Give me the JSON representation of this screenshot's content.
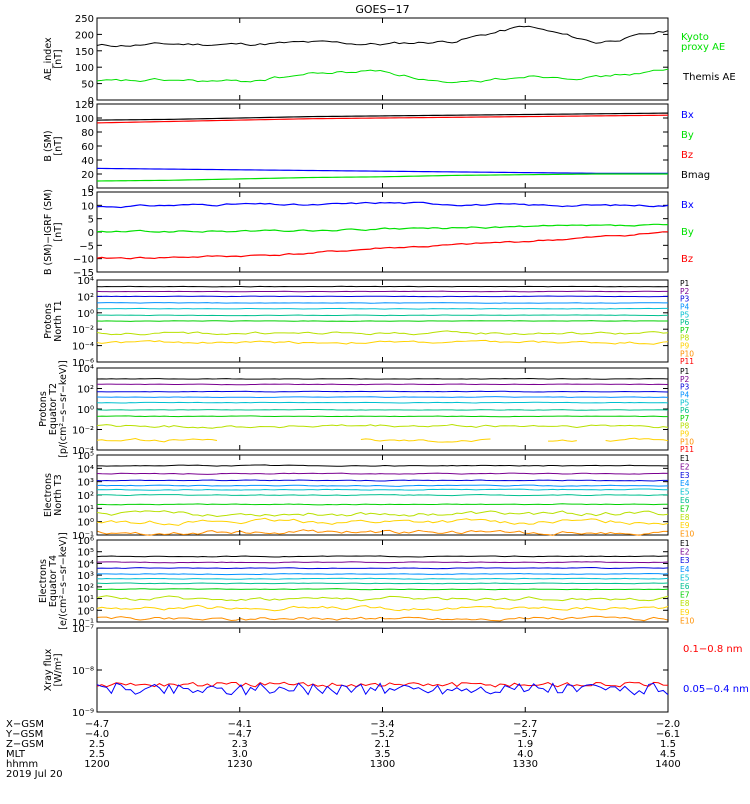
{
  "title": "GOES−17",
  "colors": {
    "black": "#000000",
    "red": "#ff0000",
    "green": "#00e000",
    "blue": "#0000ff",
    "p1": "#000000",
    "p2": "#7a0090",
    "p3": "#0000dd",
    "p4": "#0090ff",
    "p5": "#00c0d0",
    "p6": "#00c090",
    "p7": "#00d000",
    "p8": "#b8e000",
    "p9": "#ffd200",
    "p10": "#ff9000",
    "p11": "#ff0000",
    "p12": "#b00000"
  },
  "chart_data": [
    {
      "type": "line",
      "panel": "ae_index",
      "ylabel": "AE_index [nT]",
      "ylim": [
        0,
        250
      ],
      "yticks": [
        "0",
        "50",
        "100",
        "150",
        "200",
        "250"
      ],
      "x": [
        "12:00",
        "12:15",
        "12:30",
        "12:45",
        "13:00",
        "13:15",
        "13:30",
        "13:45",
        "14:00"
      ],
      "series": [
        {
          "name": "Kyoto proxy AE",
          "color": "#00e000",
          "values": [
            165,
            170,
            170,
            175,
            170,
            180,
            225,
            175,
            210
          ]
        },
        {
          "name": "Themis AE",
          "color": "#000000",
          "values": [
            55,
            60,
            55,
            80,
            90,
            45,
            75,
            70,
            90
          ]
        }
      ],
      "legend_color_map": {
        "Kyoto proxy AE": "#00e000",
        "Themis AE": "#000000"
      }
    },
    {
      "type": "line",
      "panel": "b_sm",
      "ylabel": "B (SM) [nT]",
      "ylim": [
        0,
        120
      ],
      "yticks": [
        "0",
        "20",
        "40",
        "60",
        "80",
        "100",
        "120"
      ],
      "series": [
        {
          "name": "Bx",
          "color": "#0000ff",
          "values": [
            28,
            27,
            26,
            25,
            24,
            23,
            22,
            21,
            21
          ]
        },
        {
          "name": "By",
          "color": "#00e000",
          "values": [
            10,
            11,
            13,
            15,
            16,
            18,
            19,
            20,
            20
          ]
        },
        {
          "name": "Bz",
          "color": "#ff0000",
          "values": [
            93,
            95,
            97,
            99,
            100,
            101,
            102,
            103,
            104
          ]
        },
        {
          "name": "Bmag",
          "color": "#000000",
          "values": [
            97,
            98,
            100,
            102,
            103,
            104,
            105,
            106,
            107
          ]
        }
      ]
    },
    {
      "type": "line",
      "panel": "b_minus_igrf",
      "ylabel": "B (SM)−IGRF (SM) [nT]",
      "ylim": [
        -15,
        15
      ],
      "yticks": [
        "−15",
        "−10",
        "−5",
        "0",
        "5",
        "10",
        "15"
      ],
      "series": [
        {
          "name": "Bx",
          "color": "#0000ff",
          "values": [
            9.5,
            10,
            10.5,
            10,
            11,
            10.5,
            10,
            10,
            10
          ]
        },
        {
          "name": "By",
          "color": "#00e000",
          "values": [
            0,
            0.2,
            0.3,
            0.5,
            1,
            1.5,
            2,
            2.2,
            2.5
          ]
        },
        {
          "name": "Bz",
          "color": "#ff0000",
          "values": [
            -10,
            -9.5,
            -9,
            -8,
            -6,
            -5,
            -3.5,
            -2,
            0
          ]
        }
      ]
    },
    {
      "type": "line",
      "panel": "protons_north",
      "ylabel": "Protons North T1",
      "ylim_log": [
        -6,
        4
      ],
      "yticks": [
        "10⁴",
        "10²",
        "10⁰",
        "10⁻²",
        "10⁻⁴",
        "10⁻⁶"
      ],
      "channels": [
        "P1",
        "P2",
        "P3",
        "P4",
        "P5",
        "P6",
        "P7",
        "P8",
        "P9",
        "P10",
        "P11"
      ],
      "log_levels": [
        3.2,
        2.6,
        2.0,
        1.2,
        0.5,
        -0.3,
        -1.0,
        -2.5,
        -3.6,
        null,
        null
      ]
    },
    {
      "type": "line",
      "panel": "protons_equator",
      "ylabel": "Protons Equator T2 [p/(cm²−s−sr−keV)]",
      "ylim_log": [
        -5,
        4
      ],
      "yticks": [
        "10⁴",
        "10²",
        "10⁰",
        "10⁻²",
        "10⁻⁴"
      ],
      "channels": [
        "P1",
        "P2",
        "P3",
        "P4",
        "P5",
        "P6",
        "P7",
        "P8",
        "P9",
        "P10",
        "P11"
      ],
      "log_levels": [
        2.8,
        2.2,
        1.4,
        0.8,
        0.2,
        -0.6,
        -1.3,
        -2.4,
        -3.9,
        null,
        null
      ]
    },
    {
      "type": "line",
      "panel": "electrons_north",
      "ylabel": "Electrons North T3",
      "ylim_log": [
        -1,
        5
      ],
      "yticks": [
        "10⁵",
        "10⁴",
        "10³",
        "10²",
        "10¹",
        "10⁰",
        "10⁻¹"
      ],
      "channels": [
        "E1",
        "E2",
        "E3",
        "E4",
        "E5",
        "E6",
        "E7",
        "E8",
        "E9",
        "E10"
      ],
      "log_levels": [
        4.2,
        3.6,
        3.1,
        2.7,
        2.4,
        2.0,
        1.3,
        0.6,
        0.0,
        -0.8
      ]
    },
    {
      "type": "line",
      "panel": "electrons_equator",
      "ylabel": "Electrons Equator T4 [e/(cm²−s−sr−keV)]",
      "ylim_log": [
        -1,
        6
      ],
      "yticks": [
        "10⁶",
        "10⁵",
        "10⁴",
        "10³",
        "10²",
        "10¹",
        "10⁰",
        "10⁻¹"
      ],
      "channels": [
        "E1",
        "E2",
        "E3",
        "E4",
        "E5",
        "E6",
        "E7",
        "E8",
        "E9",
        "E10"
      ],
      "log_levels": [
        4.6,
        4.1,
        3.6,
        3.1,
        2.7,
        2.3,
        1.8,
        1.0,
        0.2,
        -0.7
      ]
    },
    {
      "type": "line",
      "panel": "xray",
      "ylabel": "Xray flux [W/m²]",
      "ylim_log": [
        -9,
        -7
      ],
      "yticks": [
        "10⁻⁷",
        "10⁻⁸",
        "10⁻⁹"
      ],
      "series": [
        {
          "name": "0.1−0.8 nm",
          "color": "#ff0000",
          "log_level": -8.35
        },
        {
          "name": "0.05−0.4 nm",
          "color": "#0000ff",
          "log_level": -8.45
        }
      ]
    }
  ],
  "x_axis": {
    "row_labels": [
      "X−GSM",
      "Y−GSM",
      "Z−GSM",
      "MLT",
      "hhmm",
      "2019 Jul 20"
    ],
    "columns": [
      {
        "X": "−4.7",
        "Y": "−4.0",
        "Z": "2.5",
        "MLT": "2.5",
        "hhmm": "1200"
      },
      {
        "X": "−4.1",
        "Y": "−4.7",
        "Z": "2.3",
        "MLT": "3.0",
        "hhmm": "1230"
      },
      {
        "X": "−3.4",
        "Y": "−5.2",
        "Z": "2.1",
        "MLT": "3.5",
        "hhmm": "1300"
      },
      {
        "X": "−2.7",
        "Y": "−5.7",
        "Z": "1.9",
        "MLT": "4.0",
        "hhmm": "1330"
      },
      {
        "X": "−2.0",
        "Y": "−6.1",
        "Z": "1.5",
        "MLT": "4.5",
        "hhmm": "1400"
      }
    ]
  }
}
